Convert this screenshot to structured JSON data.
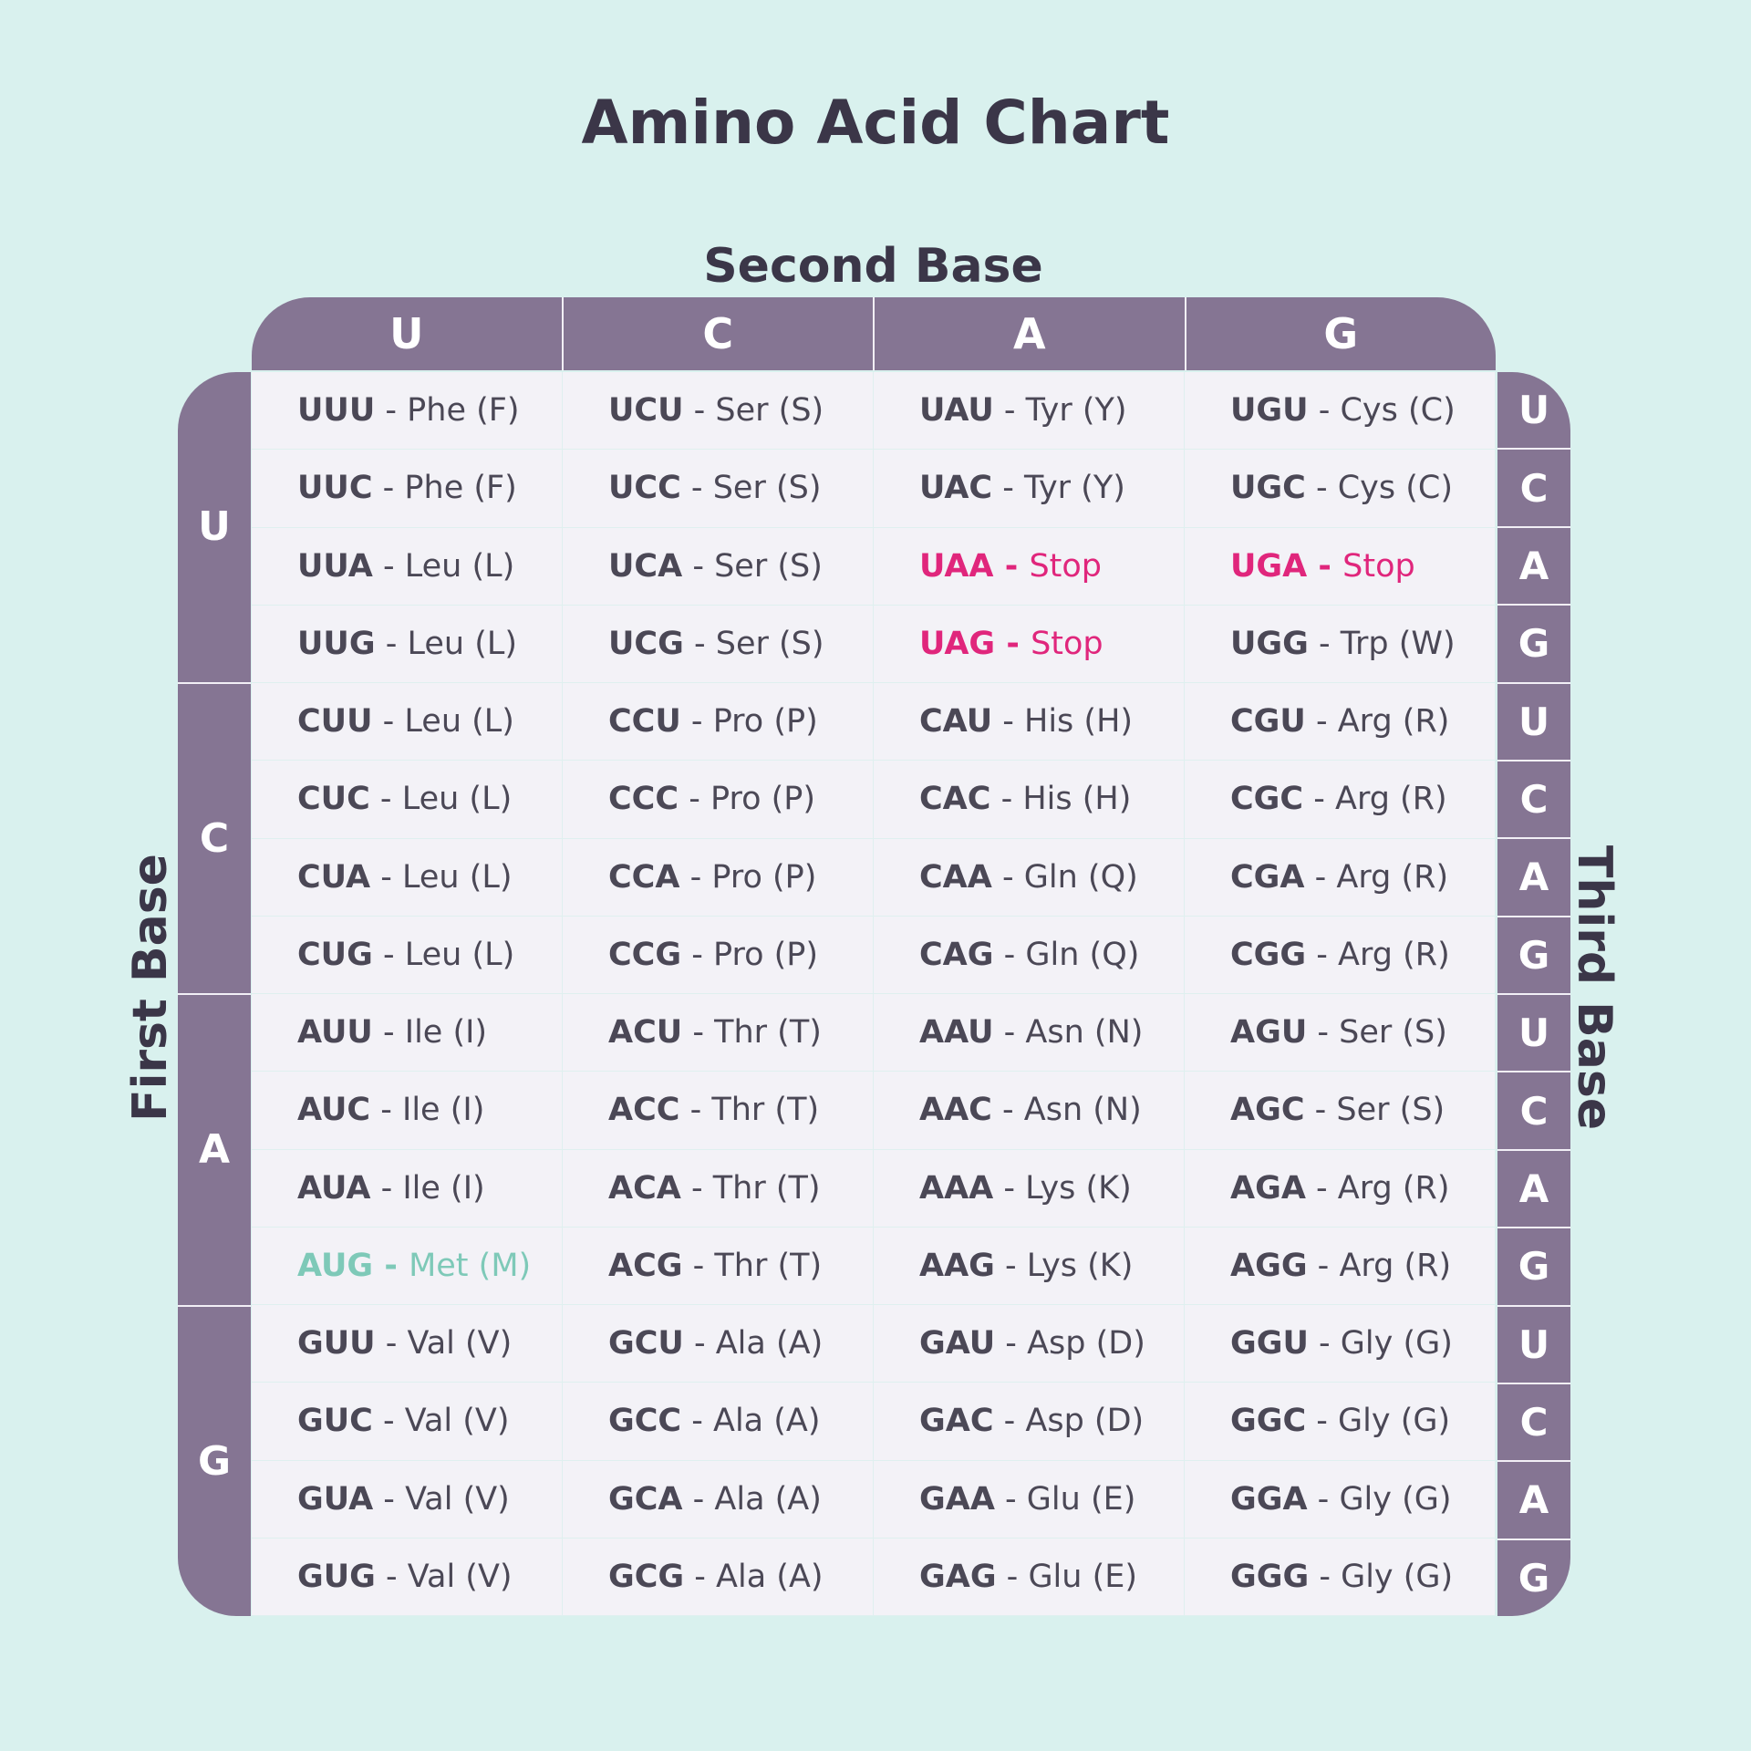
{
  "title": "Amino Acid Chart",
  "axis_labels": {
    "second_base": "Second Base",
    "first_base": "First Base",
    "third_base": "Third Base"
  },
  "bases": [
    "U",
    "C",
    "A",
    "G"
  ],
  "colors": {
    "background": "#d9f1ee",
    "header": "#857593",
    "stop": "#e0267c",
    "start": "#7ec9b8",
    "text": "#4b4856"
  },
  "rows": [
    [
      {
        "codon": "UUU",
        "sep": " - ",
        "aa": "Phe (F)",
        "kind": "normal"
      },
      {
        "codon": "UCU",
        "sep": " - ",
        "aa": "Ser (S)",
        "kind": "normal"
      },
      {
        "codon": "UAU",
        "sep": " - ",
        "aa": "Tyr (Y)",
        "kind": "normal"
      },
      {
        "codon": "UGU",
        "sep": " - ",
        "aa": "Cys (C)",
        "kind": "normal"
      }
    ],
    [
      {
        "codon": "UUC",
        "sep": " - ",
        "aa": "Phe (F)",
        "kind": "normal"
      },
      {
        "codon": "UCC",
        "sep": " - ",
        "aa": "Ser (S)",
        "kind": "normal"
      },
      {
        "codon": "UAC",
        "sep": " - ",
        "aa": "Tyr (Y)",
        "kind": "normal"
      },
      {
        "codon": "UGC",
        "sep": " - ",
        "aa": "Cys (C)",
        "kind": "normal"
      }
    ],
    [
      {
        "codon": "UUA",
        "sep": " - ",
        "aa": "Leu (L)",
        "kind": "normal"
      },
      {
        "codon": "UCA",
        "sep": " - ",
        "aa": "Ser (S)",
        "kind": "normal"
      },
      {
        "codon": "UAA",
        "sep": " - ",
        "aa": "Stop",
        "kind": "stop"
      },
      {
        "codon": "UGA",
        "sep": " - ",
        "aa": "Stop",
        "kind": "stop"
      }
    ],
    [
      {
        "codon": "UUG",
        "sep": " - ",
        "aa": "Leu (L)",
        "kind": "normal"
      },
      {
        "codon": "UCG",
        "sep": " - ",
        "aa": "Ser (S)",
        "kind": "normal"
      },
      {
        "codon": "UAG",
        "sep": " - ",
        "aa": "Stop",
        "kind": "stop"
      },
      {
        "codon": "UGG",
        "sep": " - ",
        "aa": "Trp (W)",
        "kind": "normal"
      }
    ],
    [
      {
        "codon": "CUU",
        "sep": " - ",
        "aa": "Leu (L)",
        "kind": "normal"
      },
      {
        "codon": "CCU",
        "sep": " - ",
        "aa": "Pro (P)",
        "kind": "normal"
      },
      {
        "codon": "CAU",
        "sep": " - ",
        "aa": "His (H)",
        "kind": "normal"
      },
      {
        "codon": "CGU",
        "sep": " - ",
        "aa": "Arg (R)",
        "kind": "normal"
      }
    ],
    [
      {
        "codon": "CUC",
        "sep": " - ",
        "aa": "Leu (L)",
        "kind": "normal"
      },
      {
        "codon": "CCC",
        "sep": " - ",
        "aa": "Pro (P)",
        "kind": "normal"
      },
      {
        "codon": "CAC",
        "sep": " - ",
        "aa": "His (H)",
        "kind": "normal"
      },
      {
        "codon": "CGC",
        "sep": " - ",
        "aa": "Arg (R)",
        "kind": "normal"
      }
    ],
    [
      {
        "codon": "CUA",
        "sep": " - ",
        "aa": "Leu (L)",
        "kind": "normal"
      },
      {
        "codon": "CCA",
        "sep": " - ",
        "aa": "Pro (P)",
        "kind": "normal"
      },
      {
        "codon": "CAA",
        "sep": " - ",
        "aa": "Gln (Q)",
        "kind": "normal"
      },
      {
        "codon": "CGA",
        "sep": " - ",
        "aa": "Arg (R)",
        "kind": "normal"
      }
    ],
    [
      {
        "codon": "CUG",
        "sep": " - ",
        "aa": "Leu (L)",
        "kind": "normal"
      },
      {
        "codon": "CCG",
        "sep": " - ",
        "aa": "Pro (P)",
        "kind": "normal"
      },
      {
        "codon": "CAG",
        "sep": " - ",
        "aa": "Gln (Q)",
        "kind": "normal"
      },
      {
        "codon": "CGG",
        "sep": " - ",
        "aa": "Arg (R)",
        "kind": "normal"
      }
    ],
    [
      {
        "codon": "AUU",
        "sep": " - ",
        "aa": "Ile (I)",
        "kind": "normal"
      },
      {
        "codon": "ACU",
        "sep": " - ",
        "aa": "Thr (T)",
        "kind": "normal"
      },
      {
        "codon": "AAU",
        "sep": " - ",
        "aa": "Asn (N)",
        "kind": "normal"
      },
      {
        "codon": "AGU",
        "sep": " - ",
        "aa": "Ser (S)",
        "kind": "normal"
      }
    ],
    [
      {
        "codon": "AUC",
        "sep": " - ",
        "aa": "Ile (I)",
        "kind": "normal"
      },
      {
        "codon": "ACC",
        "sep": " - ",
        "aa": "Thr (T)",
        "kind": "normal"
      },
      {
        "codon": "AAC",
        "sep": " - ",
        "aa": "Asn (N)",
        "kind": "normal"
      },
      {
        "codon": "AGC",
        "sep": " - ",
        "aa": "Ser (S)",
        "kind": "normal"
      }
    ],
    [
      {
        "codon": "AUA",
        "sep": " - ",
        "aa": "Ile (I)",
        "kind": "normal"
      },
      {
        "codon": "ACA",
        "sep": " - ",
        "aa": "Thr (T)",
        "kind": "normal"
      },
      {
        "codon": "AAA",
        "sep": " - ",
        "aa": "Lys (K)",
        "kind": "normal"
      },
      {
        "codon": "AGA",
        "sep": " - ",
        "aa": "Arg (R)",
        "kind": "normal"
      }
    ],
    [
      {
        "codon": "AUG",
        "sep": " - ",
        "aa": "Met (M)",
        "kind": "start"
      },
      {
        "codon": "ACG",
        "sep": " - ",
        "aa": "Thr (T)",
        "kind": "normal"
      },
      {
        "codon": "AAG",
        "sep": " - ",
        "aa": "Lys (K)",
        "kind": "normal"
      },
      {
        "codon": "AGG",
        "sep": " - ",
        "aa": "Arg (R)",
        "kind": "normal"
      }
    ],
    [
      {
        "codon": "GUU",
        "sep": " - ",
        "aa": "Val (V)",
        "kind": "normal"
      },
      {
        "codon": "GCU",
        "sep": " - ",
        "aa": "Ala (A)",
        "kind": "normal"
      },
      {
        "codon": "GAU",
        "sep": " - ",
        "aa": "Asp (D)",
        "kind": "normal"
      },
      {
        "codon": "GGU",
        "sep": " - ",
        "aa": "Gly (G)",
        "kind": "normal"
      }
    ],
    [
      {
        "codon": "GUC",
        "sep": " - ",
        "aa": "Val (V)",
        "kind": "normal"
      },
      {
        "codon": "GCC",
        "sep": " - ",
        "aa": "Ala (A)",
        "kind": "normal"
      },
      {
        "codon": "GAC",
        "sep": " - ",
        "aa": "Asp (D)",
        "kind": "normal"
      },
      {
        "codon": "GGC",
        "sep": " - ",
        "aa": "Gly (G)",
        "kind": "normal"
      }
    ],
    [
      {
        "codon": "GUA",
        "sep": " - ",
        "aa": "Val (V)",
        "kind": "normal"
      },
      {
        "codon": "GCA",
        "sep": " - ",
        "aa": "Ala (A)",
        "kind": "normal"
      },
      {
        "codon": "GAA",
        "sep": " - ",
        "aa": "Glu (E)",
        "kind": "normal"
      },
      {
        "codon": "GGA",
        "sep": " - ",
        "aa": "Gly (G)",
        "kind": "normal"
      }
    ],
    [
      {
        "codon": "GUG",
        "sep": " - ",
        "aa": "Val (V)",
        "kind": "normal"
      },
      {
        "codon": "GCG",
        "sep": " - ",
        "aa": "Ala (A)",
        "kind": "normal"
      },
      {
        "codon": "GAG",
        "sep": " - ",
        "aa": "Glu (E)",
        "kind": "normal"
      },
      {
        "codon": "GGG",
        "sep": " - ",
        "aa": "Gly (G)",
        "kind": "normal"
      }
    ]
  ]
}
